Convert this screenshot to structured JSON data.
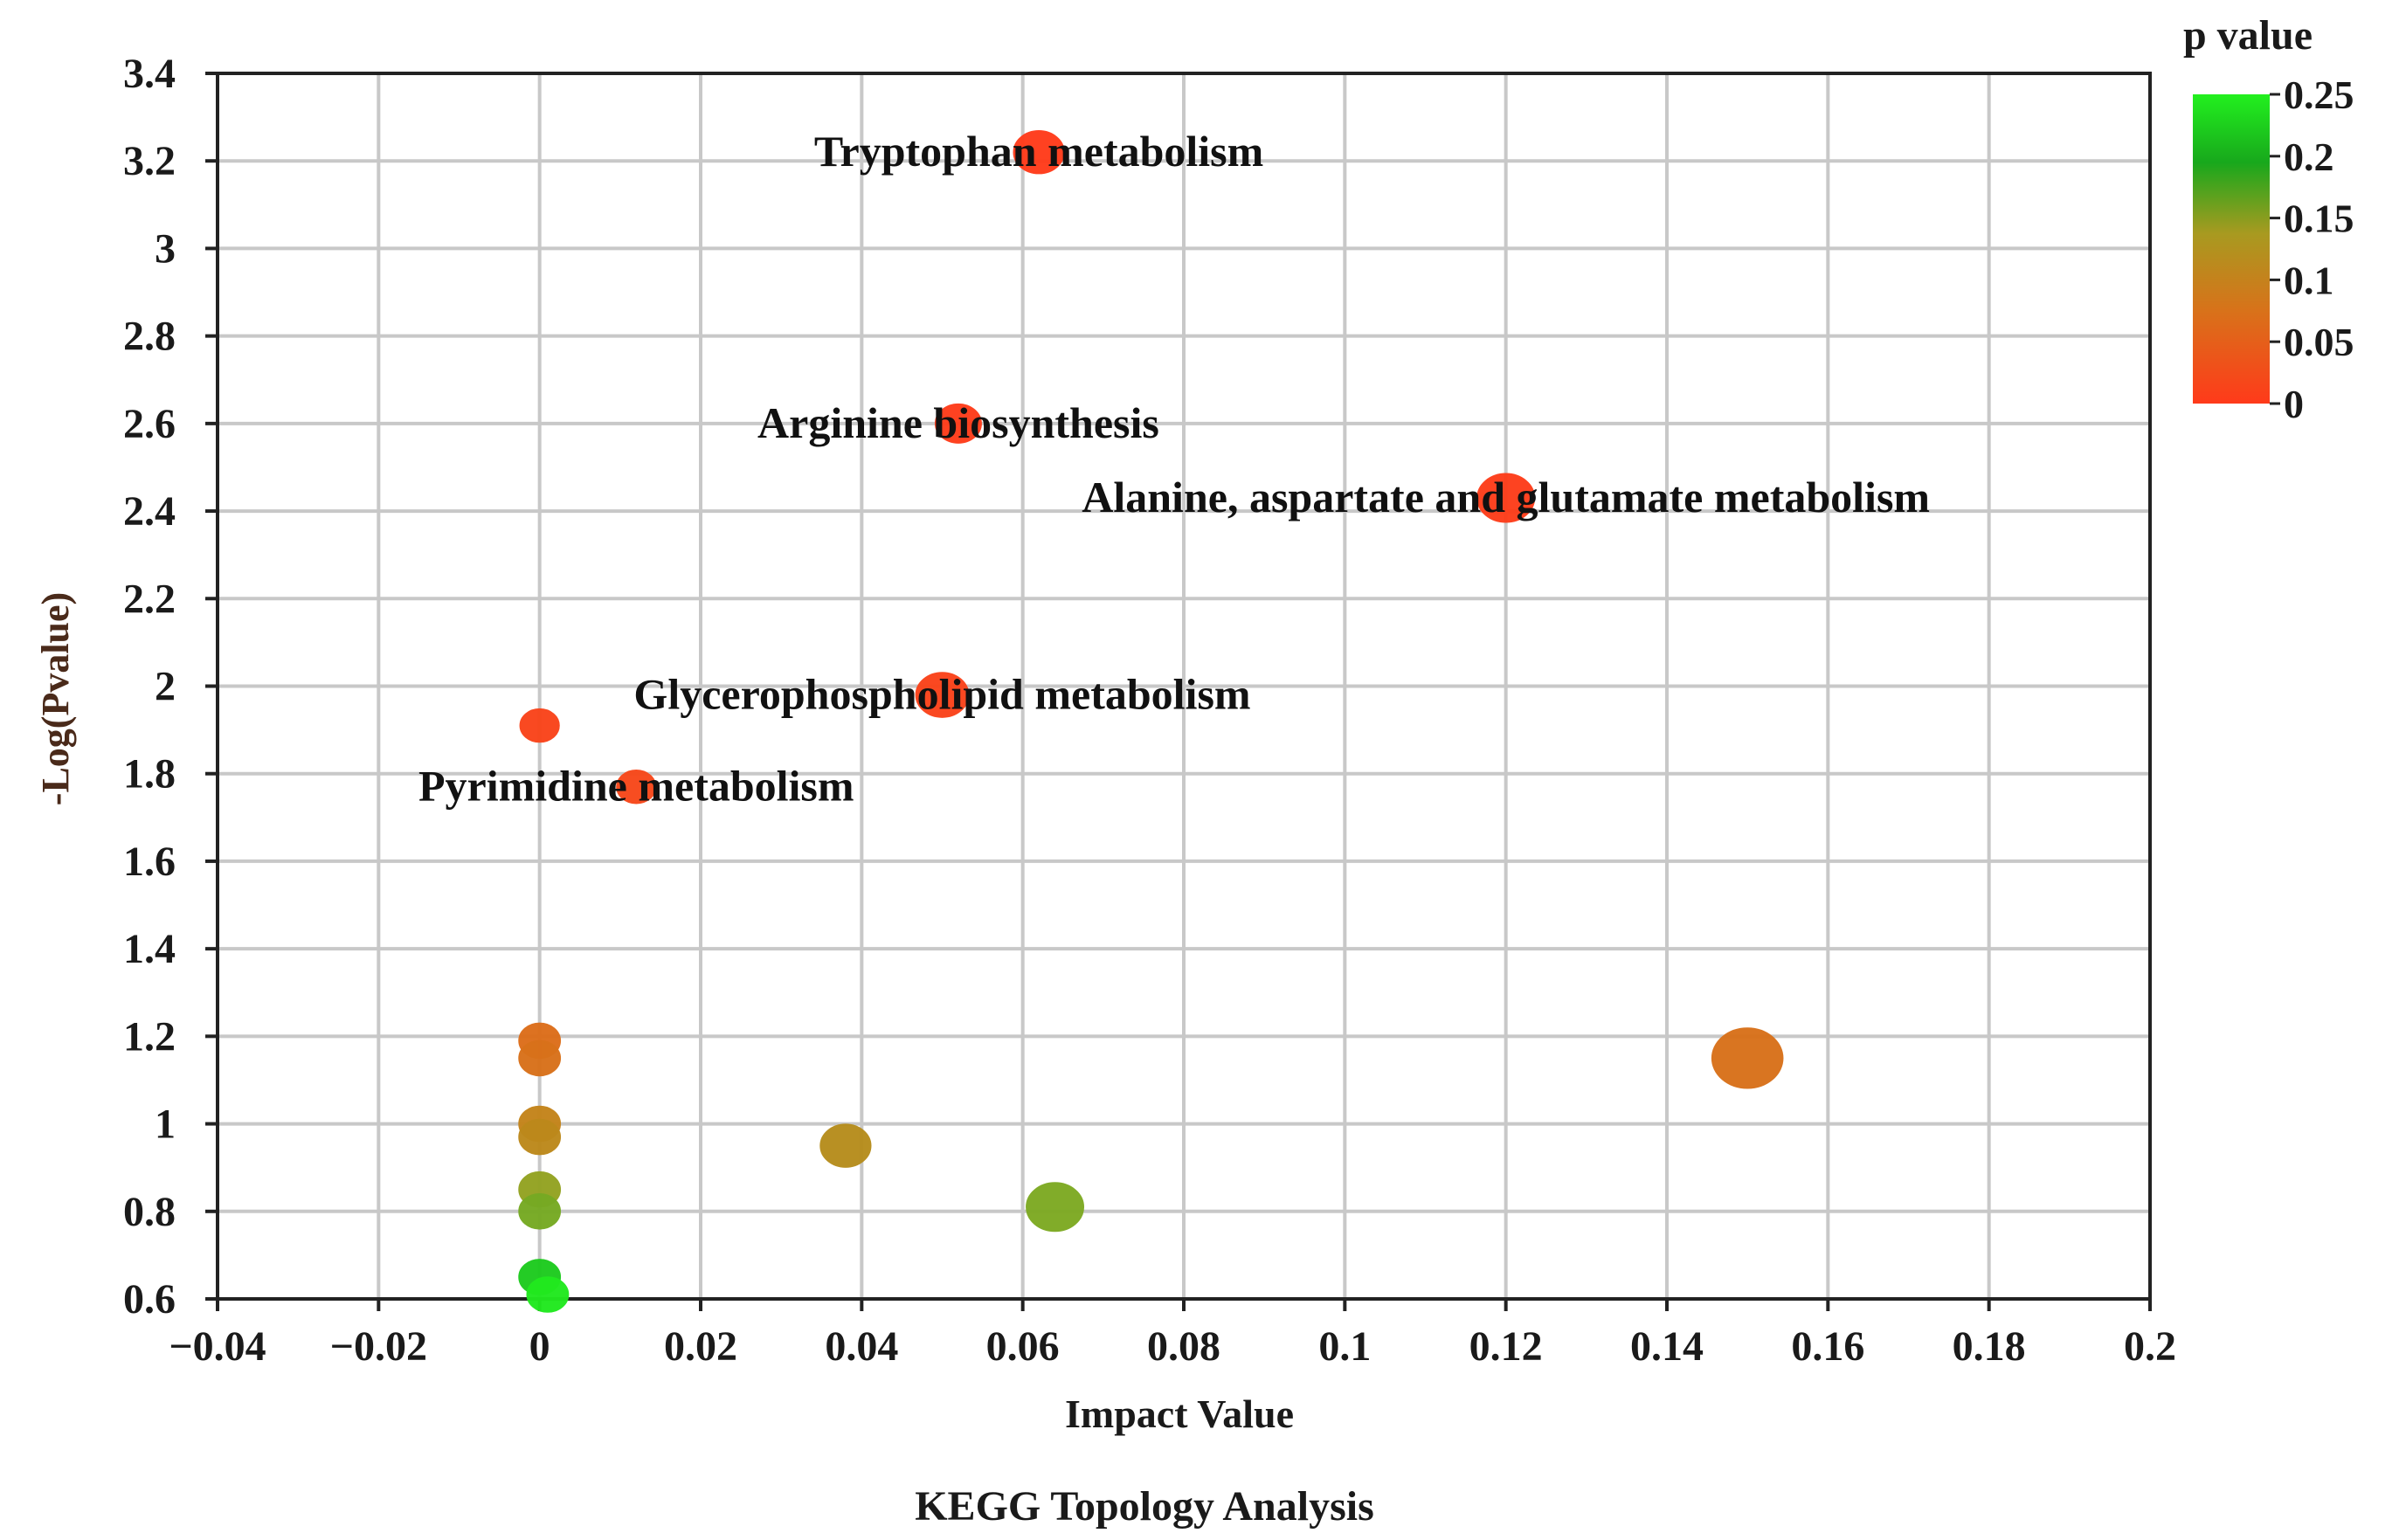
{
  "chart_data": {
    "type": "scatter",
    "title": "",
    "caption": "KEGG Topology Analysis",
    "xlabel": "Impact Value",
    "ylabel": "-Log(Pvalue)",
    "xlim": [
      -0.04,
      0.2
    ],
    "ylim": [
      0.6,
      3.4
    ],
    "xticks": [
      -0.04,
      -0.02,
      0,
      0.02,
      0.04,
      0.06,
      0.08,
      0.1,
      0.12,
      0.14,
      0.16,
      0.18,
      0.2
    ],
    "xtick_labels": [
      "−0.04",
      "−0.02",
      "0",
      "0.02",
      "0.04",
      "0.06",
      "0.08",
      "0.1",
      "0.12",
      "0.14",
      "0.16",
      "0.18",
      "0.2"
    ],
    "yticks": [
      0.6,
      0.8,
      1.0,
      1.2,
      1.4,
      1.6,
      1.8,
      2.0,
      2.2,
      2.4,
      2.6,
      2.8,
      3.0,
      3.2,
      3.4
    ],
    "ytick_labels": [
      "0.6",
      "0.8",
      "1",
      "1.2",
      "1.4",
      "1.6",
      "1.8",
      "2",
      "2.2",
      "2.4",
      "2.6",
      "2.8",
      "3",
      "3.2",
      "3.4"
    ],
    "grid": true,
    "legend": {
      "title": "p value",
      "position": "top-right",
      "range": [
        0,
        0.25
      ],
      "ticks": [
        0,
        0.05,
        0.1,
        0.15,
        0.2,
        0.25
      ],
      "tick_labels": [
        "0",
        "0.05",
        "0.1",
        "0.15",
        "0.2",
        "0.25"
      ],
      "colors": [
        "#ff3a1a",
        "#e06a1a",
        "#c08a1a",
        "#8aa824",
        "#1aa81e",
        "#22f01e"
      ]
    },
    "points": [
      {
        "x": 0.062,
        "y": 3.22,
        "p": 0.0006,
        "size": 1.1,
        "label": "Tryptophan metabolism"
      },
      {
        "x": 0.052,
        "y": 2.6,
        "p": 0.0025,
        "size": 1.0,
        "label": "Arginine biosynthesis"
      },
      {
        "x": 0.12,
        "y": 2.43,
        "p": 0.0037,
        "size": 1.25,
        "label": "Alanine, aspartate and glutamate metabolism"
      },
      {
        "x": 0.05,
        "y": 1.98,
        "p": 0.0105,
        "size": 1.15,
        "label": "Glycerophospholipid metabolism"
      },
      {
        "x": 0.0,
        "y": 1.91,
        "p": 0.0123,
        "size": 0.85,
        "label": ""
      },
      {
        "x": 0.012,
        "y": 1.77,
        "p": 0.017,
        "size": 0.85,
        "label": "Pyrimidine metabolism"
      },
      {
        "x": 0.0,
        "y": 1.19,
        "p": 0.065,
        "size": 0.9,
        "label": ""
      },
      {
        "x": 0.0,
        "y": 1.15,
        "p": 0.071,
        "size": 0.9,
        "label": ""
      },
      {
        "x": 0.15,
        "y": 1.15,
        "p": 0.071,
        "size": 1.55,
        "label": ""
      },
      {
        "x": 0.0,
        "y": 1.0,
        "p": 0.1,
        "size": 0.9,
        "label": ""
      },
      {
        "x": 0.0,
        "y": 0.97,
        "p": 0.107,
        "size": 0.9,
        "label": ""
      },
      {
        "x": 0.038,
        "y": 0.95,
        "p": 0.112,
        "size": 1.1,
        "label": ""
      },
      {
        "x": 0.0,
        "y": 0.85,
        "p": 0.141,
        "size": 0.9,
        "label": ""
      },
      {
        "x": 0.0,
        "y": 0.8,
        "p": 0.158,
        "size": 0.9,
        "label": ""
      },
      {
        "x": 0.064,
        "y": 0.81,
        "p": 0.155,
        "size": 1.25,
        "label": ""
      },
      {
        "x": 0.0,
        "y": 0.65,
        "p": 0.224,
        "size": 0.9,
        "label": ""
      },
      {
        "x": 0.001,
        "y": 0.61,
        "p": 0.245,
        "size": 0.9,
        "label": ""
      }
    ]
  }
}
